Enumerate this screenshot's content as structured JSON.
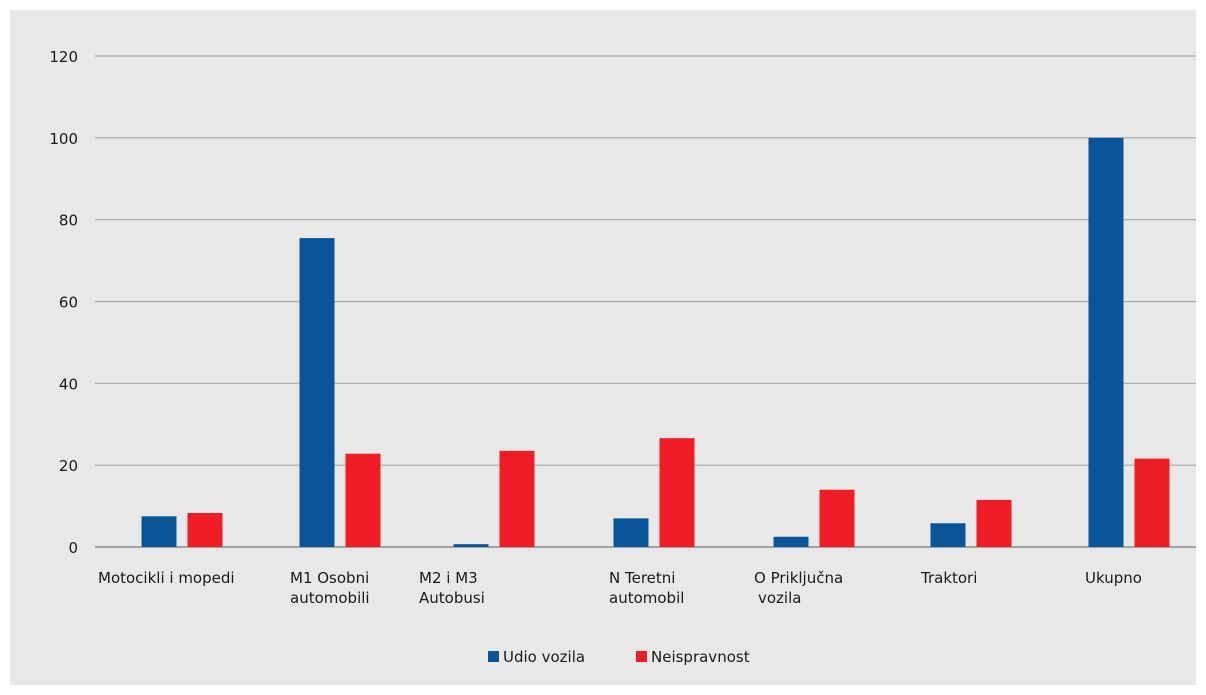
{
  "chart_data": {
    "type": "bar",
    "title": "",
    "xlabel": "",
    "ylabel": "",
    "ylim": [
      0,
      120
    ],
    "yticks": [
      0,
      20,
      40,
      60,
      80,
      100,
      120
    ],
    "grid": true,
    "legend_position": "bottom-center",
    "categories": [
      [
        "Motocikli i mopedi"
      ],
      [
        "M1 Osobni",
        "automobili"
      ],
      [
        "M2 i M3",
        "Autobusi"
      ],
      [
        "N Teretni",
        "automobil"
      ],
      [
        "O Priključna",
        "vozila"
      ],
      [
        "Traktori"
      ],
      [
        "Ukupno"
      ]
    ],
    "series": [
      {
        "name": "Udio vozila",
        "color": "#0a5499",
        "values": [
          7.5,
          75.5,
          0.7,
          7,
          2.5,
          5.8,
          100
        ]
      },
      {
        "name": "Neispravnost",
        "color": "#ee1c25",
        "values": [
          8.3,
          22.8,
          23.5,
          26.6,
          14,
          11.5,
          21.6
        ]
      }
    ]
  }
}
